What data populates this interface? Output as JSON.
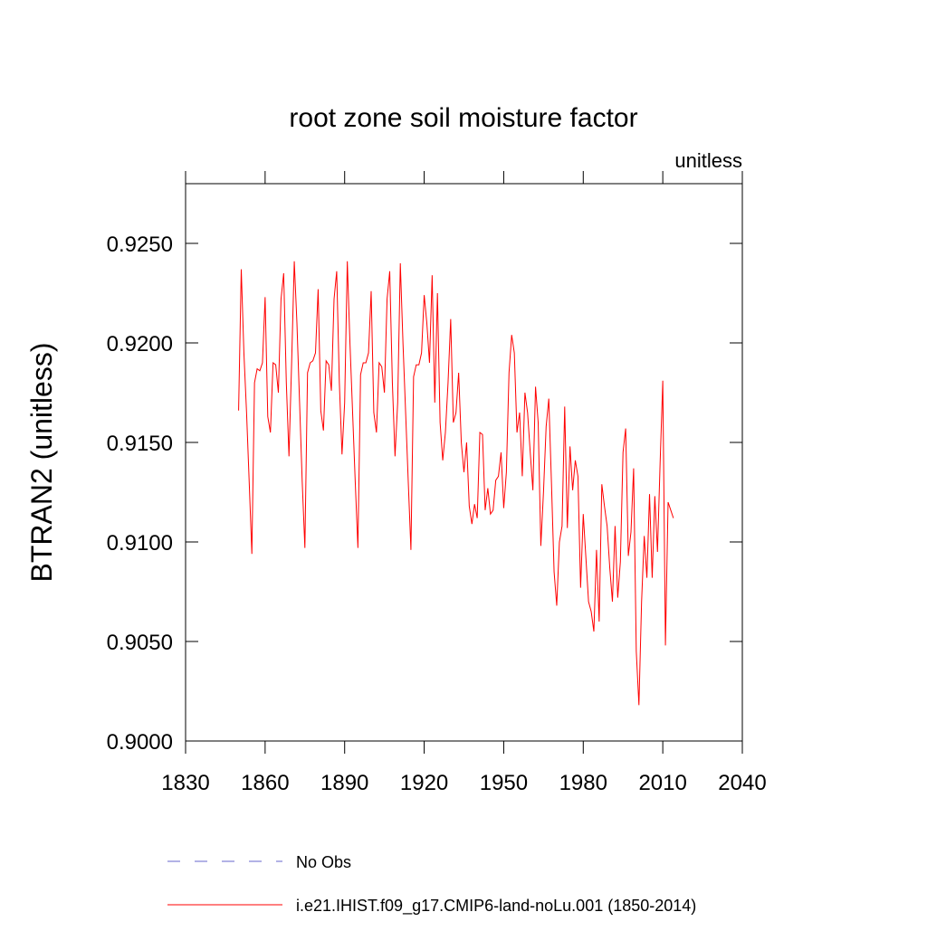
{
  "chart_data": {
    "type": "line",
    "title": "root zone soil moisture factor",
    "units": "unitless",
    "ylabel": "BTRAN2  (unitless)",
    "xlim": [
      1830,
      2040
    ],
    "xticks": [
      1830,
      1860,
      1890,
      1920,
      1950,
      1980,
      2010,
      2040
    ],
    "ylim": [
      0.9,
      0.928
    ],
    "yticks": [
      {
        "value": 0.9,
        "label": "0.9000"
      },
      {
        "value": 0.905,
        "label": "0.9050"
      },
      {
        "value": 0.91,
        "label": "0.9100"
      },
      {
        "value": 0.915,
        "label": "0.9150"
      },
      {
        "value": 0.92,
        "label": "0.9200"
      },
      {
        "value": 0.925,
        "label": "0.9250"
      }
    ],
    "x": [
      1850,
      1851,
      1852,
      1853,
      1854,
      1855,
      1856,
      1857,
      1858,
      1859,
      1860,
      1861,
      1862,
      1863,
      1864,
      1865,
      1866,
      1867,
      1868,
      1869,
      1870,
      1871,
      1872,
      1873,
      1874,
      1875,
      1876,
      1877,
      1878,
      1879,
      1880,
      1881,
      1882,
      1883,
      1884,
      1885,
      1886,
      1887,
      1888,
      1889,
      1890,
      1891,
      1892,
      1893,
      1894,
      1895,
      1896,
      1897,
      1898,
      1899,
      1900,
      1901,
      1902,
      1903,
      1904,
      1905,
      1906,
      1907,
      1908,
      1909,
      1910,
      1911,
      1912,
      1913,
      1914,
      1915,
      1916,
      1917,
      1918,
      1919,
      1920,
      1921,
      1922,
      1923,
      1924,
      1925,
      1926,
      1927,
      1928,
      1929,
      1930,
      1931,
      1932,
      1933,
      1934,
      1935,
      1936,
      1937,
      1938,
      1939,
      1940,
      1941,
      1942,
      1943,
      1944,
      1945,
      1946,
      1947,
      1948,
      1949,
      1950,
      1951,
      1952,
      1953,
      1954,
      1955,
      1956,
      1957,
      1958,
      1959,
      1960,
      1961,
      1962,
      1963,
      1964,
      1965,
      1966,
      1967,
      1968,
      1969,
      1970,
      1971,
      1972,
      1973,
      1974,
      1975,
      1976,
      1977,
      1978,
      1979,
      1980,
      1981,
      1982,
      1983,
      1984,
      1985,
      1986,
      1987,
      1988,
      1989,
      1990,
      1991,
      1992,
      1993,
      1994,
      1995,
      1996,
      1997,
      1998,
      1999,
      2000,
      2001,
      2002,
      2003,
      2004,
      2005,
      2006,
      2007,
      2008,
      2009,
      2010,
      2011,
      2012,
      2013,
      2014
    ],
    "series": [
      {
        "name": "i.e21.IHIST.f09_g17.CMIP6-land-noLu.001 (1850-2014)",
        "color": "#ff0000",
        "values": [
          0.9166,
          0.9237,
          0.9195,
          0.9165,
          0.913,
          0.9094,
          0.918,
          0.9187,
          0.9186,
          0.919,
          0.9223,
          0.9163,
          0.9155,
          0.919,
          0.9189,
          0.9175,
          0.9222,
          0.9235,
          0.918,
          0.9143,
          0.919,
          0.9241,
          0.921,
          0.917,
          0.913,
          0.9097,
          0.9185,
          0.919,
          0.9191,
          0.9195,
          0.9227,
          0.9166,
          0.9156,
          0.9191,
          0.9189,
          0.9176,
          0.9222,
          0.9236,
          0.918,
          0.9144,
          0.917,
          0.9241,
          0.92,
          0.9165,
          0.913,
          0.9097,
          0.9184,
          0.919,
          0.919,
          0.9195,
          0.9226,
          0.9165,
          0.9155,
          0.919,
          0.9188,
          0.9175,
          0.9222,
          0.9236,
          0.918,
          0.9143,
          0.917,
          0.924,
          0.92,
          0.9165,
          0.913,
          0.9096,
          0.9183,
          0.9189,
          0.9189,
          0.9195,
          0.9224,
          0.921,
          0.919,
          0.9234,
          0.917,
          0.9225,
          0.916,
          0.9141,
          0.9155,
          0.918,
          0.9212,
          0.916,
          0.9165,
          0.9185,
          0.915,
          0.9135,
          0.915,
          0.9118,
          0.9109,
          0.9119,
          0.9112,
          0.9155,
          0.9154,
          0.9116,
          0.9127,
          0.9114,
          0.9116,
          0.9131,
          0.9133,
          0.9145,
          0.9117,
          0.9135,
          0.9185,
          0.9204,
          0.9195,
          0.9155,
          0.9165,
          0.9133,
          0.9175,
          0.9165,
          0.9145,
          0.9126,
          0.9178,
          0.916,
          0.9098,
          0.9125,
          0.9158,
          0.9172,
          0.913,
          0.9085,
          0.9068,
          0.91,
          0.9108,
          0.9168,
          0.9107,
          0.9148,
          0.9126,
          0.9141,
          0.9133,
          0.9077,
          0.9114,
          0.9092,
          0.907,
          0.9065,
          0.9055,
          0.9096,
          0.906,
          0.9129,
          0.9118,
          0.9108,
          0.9087,
          0.907,
          0.9108,
          0.9072,
          0.909,
          0.9145,
          0.9157,
          0.9093,
          0.9105,
          0.9137,
          0.9045,
          0.9018,
          0.907,
          0.9103,
          0.9082,
          0.9124,
          0.9082,
          0.9123,
          0.9095,
          0.914,
          0.9181,
          0.9048,
          0.912,
          0.9116,
          0.9112
        ]
      }
    ],
    "legend_only": [
      {
        "name": "No Obs",
        "color": "#6666cc",
        "style": "dashed"
      }
    ]
  }
}
